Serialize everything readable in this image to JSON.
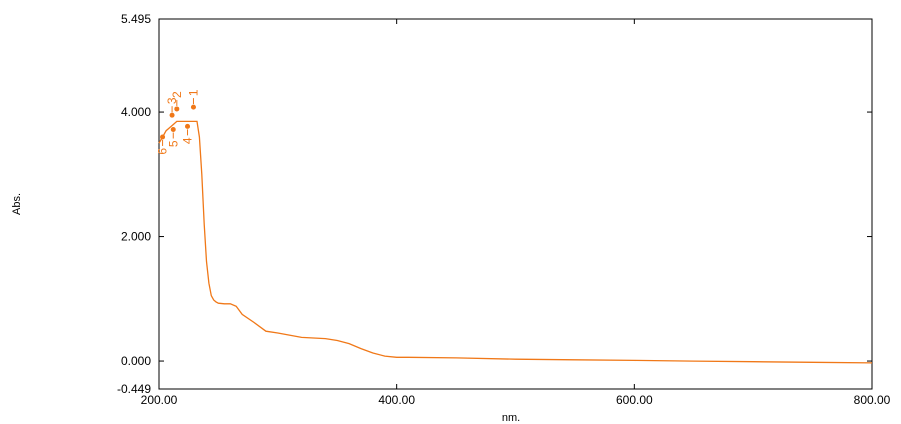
{
  "chart_data": {
    "type": "line",
    "xlabel": "nm.",
    "ylabel": "Abs.",
    "xlim": [
      200,
      800
    ],
    "ylim": [
      -0.449,
      5.495
    ],
    "x_ticks": [
      200,
      400,
      600,
      800
    ],
    "x_tick_labels": [
      "200.00",
      "400.00",
      "600.00",
      "800.00"
    ],
    "y_ticks": [
      -0.449,
      0,
      2,
      4,
      5.495
    ],
    "y_tick_labels": [
      "-0.449",
      "0.000",
      "2.000",
      "4.000",
      "5.495"
    ],
    "grid": false,
    "line_color": "#f07818",
    "series": [
      {
        "x": [
          200,
          203,
          206,
          209,
          212,
          215,
          218,
          221,
          224,
          227,
          230,
          232,
          234,
          236,
          238,
          240,
          242,
          244,
          246,
          248,
          250,
          255,
          260,
          265,
          270,
          280,
          290,
          300,
          320,
          340,
          350,
          360,
          370,
          380,
          390,
          400,
          410,
          450,
          500,
          550,
          600,
          650,
          700,
          750,
          800
        ],
        "y": [
          3.5,
          3.6,
          3.7,
          3.75,
          3.8,
          3.85,
          3.85,
          3.85,
          3.85,
          3.85,
          3.85,
          3.85,
          3.6,
          3.0,
          2.2,
          1.6,
          1.25,
          1.05,
          0.98,
          0.95,
          0.93,
          0.92,
          0.92,
          0.88,
          0.75,
          0.62,
          0.48,
          0.45,
          0.38,
          0.36,
          0.33,
          0.28,
          0.2,
          0.13,
          0.08,
          0.06,
          0.06,
          0.05,
          0.03,
          0.02,
          0.01,
          0.0,
          -0.01,
          -0.02,
          -0.03
        ]
      }
    ],
    "peaks": [
      {
        "label": "1",
        "x": 229,
        "y": 4.08
      },
      {
        "label": "2",
        "x": 215,
        "y": 4.05
      },
      {
        "label": "3",
        "x": 211,
        "y": 3.95
      },
      {
        "label": "4",
        "x": 224,
        "y": 3.77
      },
      {
        "label": "5",
        "x": 212,
        "y": 3.72
      },
      {
        "label": "6",
        "x": 203,
        "y": 3.6
      }
    ]
  }
}
